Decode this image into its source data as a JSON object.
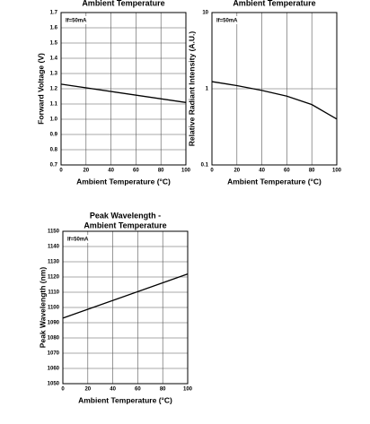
{
  "chart_data": [
    {
      "type": "line",
      "title": [
        "Ambient Temperature"
      ],
      "annotation": "If=50mA",
      "x_label": "Ambient Temperature (°C)",
      "y_label": "Forward Voltage (V)",
      "x": [
        0,
        100
      ],
      "series": [
        {
          "color": "#000000",
          "values": [
            1.23,
            1.11
          ]
        }
      ],
      "xlim": [
        0,
        100
      ],
      "xticks": [
        0,
        20,
        40,
        60,
        80,
        100
      ],
      "ylim": [
        0.7,
        1.7
      ],
      "yticks": [
        0.7,
        0.8,
        0.9,
        {
          "value": 1.0,
          "label": "1.0"
        },
        1.1,
        1.2,
        1.3,
        1.4,
        1.5,
        1.6,
        1.7
      ],
      "grid": true,
      "log_y": false
    },
    {
      "type": "line",
      "title": [
        "Ambient Temperature"
      ],
      "annotation": "If=50mA",
      "x_label": "Ambient Temperature (°C)",
      "y_label": "Relative Radiant Intensity (A.U.)",
      "x": [
        0,
        20,
        40,
        60,
        80,
        100
      ],
      "series": [
        {
          "color": "#000000",
          "values": [
            1.24,
            1.1,
            0.95,
            0.8,
            0.62,
            0.4
          ]
        }
      ],
      "xlim": [
        0,
        100
      ],
      "xticks": [
        0,
        20,
        40,
        60,
        80,
        100
      ],
      "ylim": [
        0.1,
        10
      ],
      "yticks": [
        0.1,
        1,
        10
      ],
      "grid": true,
      "log_y": true
    },
    {
      "type": "line",
      "title": [
        "Peak Wavelength -",
        "Ambient Temperature"
      ],
      "annotation": "If=50mA",
      "x_label": "Ambient Temperature (°C)",
      "y_label": "Peak Wavelength (nm)",
      "x": [
        0,
        100
      ],
      "series": [
        {
          "color": "#000000",
          "values": [
            1093,
            1122
          ]
        }
      ],
      "xlim": [
        0,
        100
      ],
      "xticks": [
        0,
        20,
        40,
        60,
        80,
        100
      ],
      "ylim": [
        1050,
        1150
      ],
      "yticks": [
        1050,
        1060,
        1070,
        1080,
        1090,
        1100,
        1110,
        1120,
        1130,
        1140,
        1150
      ],
      "grid": true,
      "log_y": false
    }
  ]
}
